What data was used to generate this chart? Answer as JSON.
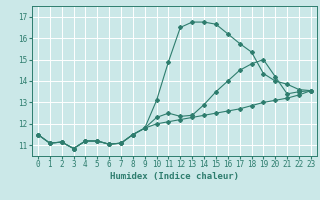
{
  "xlabel": "Humidex (Indice chaleur)",
  "background_color": "#cbe8e8",
  "grid_color": "#ffffff",
  "line_color": "#2e7d6e",
  "xlim": [
    -0.5,
    23.5
  ],
  "ylim": [
    10.5,
    17.5
  ],
  "yticks": [
    11,
    12,
    13,
    14,
    15,
    16,
    17
  ],
  "xticks": [
    0,
    1,
    2,
    3,
    4,
    5,
    6,
    7,
    8,
    9,
    10,
    11,
    12,
    13,
    14,
    15,
    16,
    17,
    18,
    19,
    20,
    21,
    22,
    23
  ],
  "line1_x": [
    0,
    1,
    2,
    3,
    4,
    5,
    6,
    7,
    8,
    9,
    10,
    11,
    12,
    13,
    14,
    15,
    16,
    17,
    18,
    19,
    20,
    21,
    22,
    23
  ],
  "line1_y": [
    11.5,
    11.1,
    11.15,
    10.85,
    11.2,
    11.2,
    11.05,
    11.1,
    11.5,
    11.8,
    13.1,
    14.9,
    16.5,
    16.75,
    16.75,
    16.65,
    16.2,
    15.75,
    15.35,
    14.35,
    14.0,
    13.85,
    13.6,
    13.55
  ],
  "line2_x": [
    0,
    1,
    2,
    3,
    4,
    5,
    6,
    7,
    8,
    9,
    10,
    11,
    12,
    13,
    14,
    15,
    16,
    17,
    18,
    19,
    20,
    21,
    22,
    23
  ],
  "line2_y": [
    11.5,
    11.1,
    11.15,
    10.85,
    11.2,
    11.2,
    11.05,
    11.1,
    11.5,
    11.8,
    12.3,
    12.5,
    12.35,
    12.4,
    12.9,
    13.5,
    14.0,
    14.5,
    14.8,
    15.0,
    14.2,
    13.4,
    13.5,
    13.55
  ],
  "line3_x": [
    0,
    1,
    2,
    3,
    4,
    5,
    6,
    7,
    8,
    9,
    10,
    11,
    12,
    13,
    14,
    15,
    16,
    17,
    18,
    19,
    20,
    21,
    22,
    23
  ],
  "line3_y": [
    11.5,
    11.1,
    11.15,
    10.85,
    11.2,
    11.2,
    11.05,
    11.1,
    11.5,
    11.8,
    12.0,
    12.1,
    12.2,
    12.3,
    12.4,
    12.5,
    12.6,
    12.7,
    12.85,
    13.0,
    13.1,
    13.2,
    13.35,
    13.55
  ],
  "marker_style": "D",
  "marker_size": 2.0,
  "line_width": 0.8,
  "tick_fontsize": 5.5,
  "xlabel_fontsize": 6.5
}
